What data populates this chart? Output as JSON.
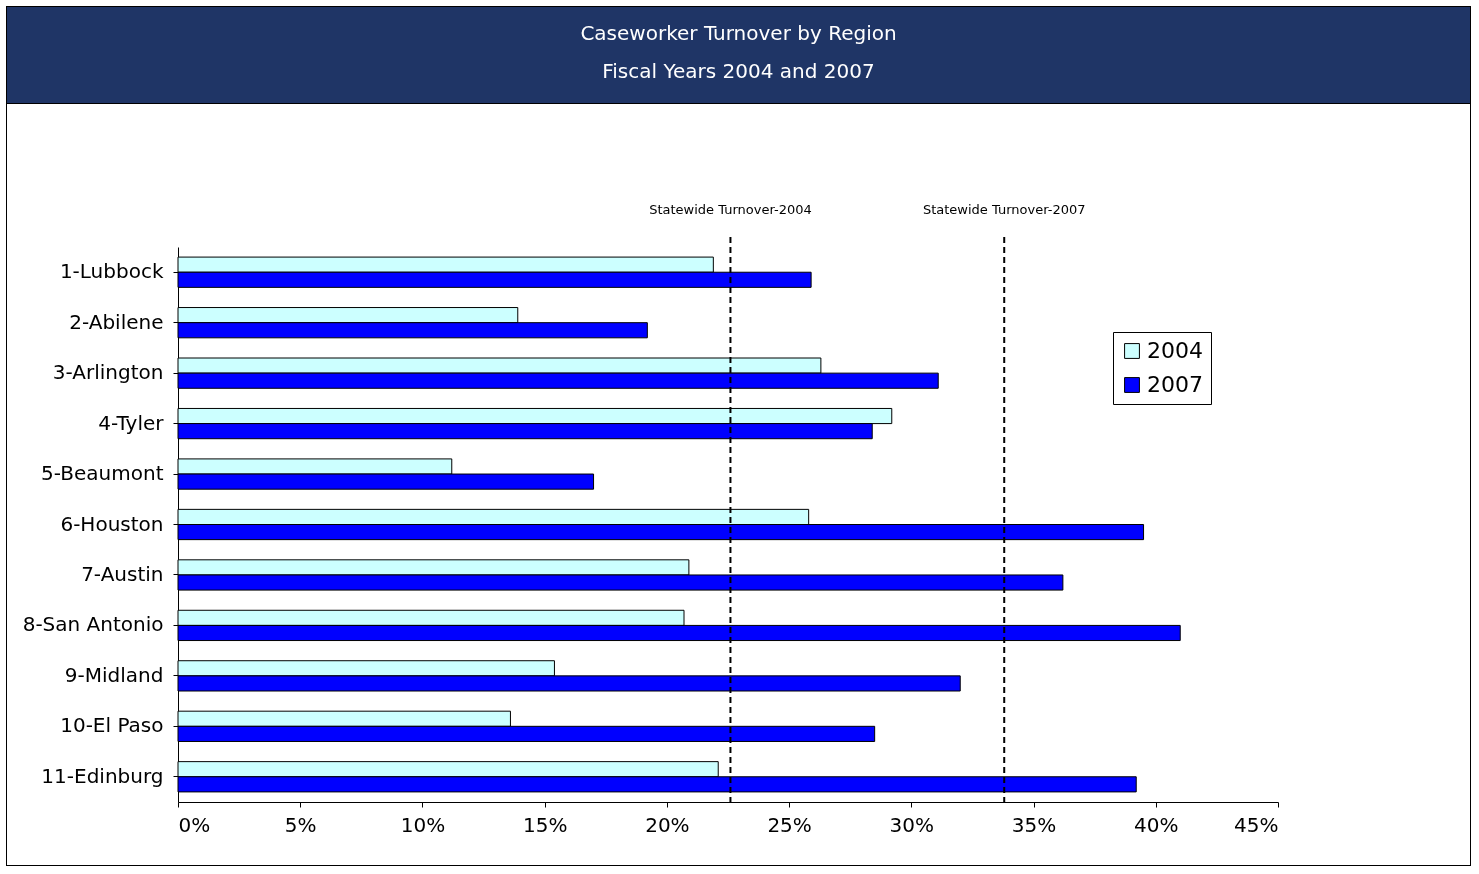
{
  "chart_data": {
    "type": "bar",
    "orientation": "horizontal",
    "title": "Caseworker Turnover by Region",
    "subtitle": "Fiscal Years 2004 and 2007",
    "categories": [
      "1-Lubbock",
      "2-Abilene",
      "3-Arlington",
      "4-Tyler",
      "5-Beaumont",
      "6-Houston",
      "7-Austin",
      "8-San Antonio",
      "9-Midland",
      "10-El Paso",
      "11-Edinburg"
    ],
    "series": [
      {
        "name": "2004",
        "color": "#ccffff",
        "values": [
          21.9,
          13.9,
          26.3,
          29.2,
          11.2,
          25.8,
          20.9,
          20.7,
          15.4,
          13.6,
          22.1
        ]
      },
      {
        "name": "2007",
        "color": "#0000ff",
        "values": [
          25.9,
          19.2,
          31.1,
          28.4,
          17.0,
          39.5,
          36.2,
          41.0,
          32.0,
          28.5,
          39.2
        ]
      }
    ],
    "xlim": [
      0,
      45
    ],
    "xticks": [
      {
        "value": 0,
        "label": "0%"
      },
      {
        "value": 5,
        "label": "5%"
      },
      {
        "value": 10,
        "label": "10%"
      },
      {
        "value": 15,
        "label": "15%"
      },
      {
        "value": 20,
        "label": "20%"
      },
      {
        "value": 25,
        "label": "25%"
      },
      {
        "value": 30,
        "label": "30%"
      },
      {
        "value": 35,
        "label": "35%"
      },
      {
        "value": 40,
        "label": "40%"
      },
      {
        "value": 45,
        "label": "45%"
      }
    ],
    "ref_lines": [
      {
        "axis": "x",
        "value": 22.6,
        "label": "Statewide Turnover-2004",
        "color": "#000000",
        "line_style": "dashed"
      },
      {
        "axis": "x",
        "value": 33.8,
        "label": "Statewide Turnover-2007",
        "color": "#000000",
        "line_style": "dashed"
      }
    ],
    "grid": false,
    "legend": "right"
  }
}
